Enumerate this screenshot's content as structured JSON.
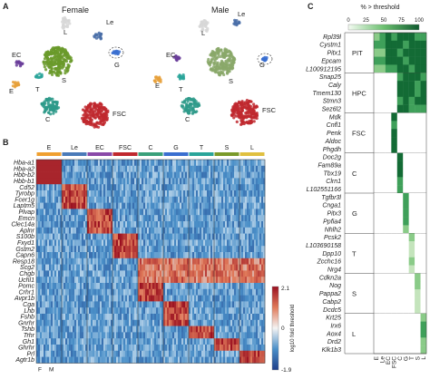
{
  "panels": {
    "a": "A",
    "b": "B",
    "c": "C"
  },
  "panel_a": {
    "female_title": "Female",
    "male_title": "Male",
    "female_clusters": [
      {
        "label": "L",
        "color": "#d7d7d7"
      },
      {
        "label": "Le",
        "color": "#4a6fa8"
      },
      {
        "label": "EC",
        "color": "#6a3d9a"
      },
      {
        "label": "S",
        "color": "#6a9a2a"
      },
      {
        "label": "T",
        "color": "#2aa59a"
      },
      {
        "label": "E",
        "color": "#e6a03a"
      },
      {
        "label": "G",
        "color": "#3a6fd0"
      },
      {
        "label": "C",
        "color": "#2e9a8a"
      },
      {
        "label": "FSC",
        "color": "#c0282e"
      }
    ],
    "male_clusters": [
      {
        "label": "L",
        "color": "#d7d7d7"
      },
      {
        "label": "Le",
        "color": "#4a6fa8"
      },
      {
        "label": "EC",
        "color": "#6a3d9a"
      },
      {
        "label": "S",
        "color": "#8aa86a"
      },
      {
        "label": "T",
        "color": "#2aa59a"
      },
      {
        "label": "E",
        "color": "#e6a03a"
      },
      {
        "label": "G",
        "color": "#3a6fd0"
      },
      {
        "label": "C",
        "color": "#2e9a8a"
      },
      {
        "label": "FSC",
        "color": "#c0282e"
      }
    ]
  },
  "chart_data": [
    {
      "type": "heatmap",
      "title": "",
      "column_groups": [
        {
          "label": "E",
          "color": "#f0a030"
        },
        {
          "label": "Le",
          "color": "#4a7ab8"
        },
        {
          "label": "EC",
          "color": "#8a4aa8"
        },
        {
          "label": "FSC",
          "color": "#c0282e"
        },
        {
          "label": "C",
          "color": "#3aa07a"
        },
        {
          "label": "G",
          "color": "#3a6fd0"
        },
        {
          "label": "T",
          "color": "#2aa59a"
        },
        {
          "label": "S",
          "color": "#7a9a2a"
        },
        {
          "label": "L",
          "color": "#e0c040"
        }
      ],
      "bottom_labels": [
        "F",
        "M"
      ],
      "rows": [
        "Hba-a1",
        "Hba-a2",
        "Hbb-b2",
        "Hbb-b1",
        "Cd52",
        "Tyrobp",
        "Fcer1g",
        "Laptm5",
        "Plvap",
        "Emcn",
        "Clec14a",
        "Aplnr",
        "S100b",
        "Fxyd1",
        "Gstm2",
        "Capn6",
        "Resp18",
        "Scg2",
        "Chgb",
        "Uchl1",
        "Pomc",
        "Crhr1",
        "Avpr1b",
        "Cga",
        "Lhb",
        "Fshb",
        "Gnrhr",
        "Tshb",
        "Trhr",
        "Gh1",
        "Ghrhr",
        "Prl",
        "Agtr1b"
      ],
      "row_group": [
        0,
        0,
        0,
        0,
        1,
        1,
        1,
        1,
        2,
        2,
        2,
        2,
        3,
        3,
        3,
        3,
        -1,
        -1,
        -1,
        -1,
        4,
        4,
        4,
        5,
        5,
        5,
        5,
        6,
        6,
        7,
        7,
        8,
        8
      ],
      "colorbar": {
        "min": -1.9,
        "max": 2.1,
        "ticks": [
          "2.1",
          "0",
          "-1.9"
        ],
        "label": "log10 fold threshold"
      }
    },
    {
      "type": "heatmap",
      "title": "% > threshold",
      "scale_ticks": [
        0,
        25,
        50,
        75,
        100
      ],
      "columns": [
        "E",
        "Le",
        "EC",
        "FSC",
        "C",
        "G",
        "T",
        "S",
        "L"
      ],
      "groups": [
        {
          "label": "PIT",
          "genes": [
            "Rpl39l",
            "Cystm1",
            "Pitx1",
            "Epcam",
            "L100912195"
          ],
          "pattern": [
            4,
            4,
            5,
            5,
            5,
            5,
            5,
            5,
            5
          ]
        },
        {
          "label": "HPC",
          "genes": [
            "Snap25",
            "Caly",
            "Tmem130",
            "Stmn3",
            "Sez6l2"
          ],
          "pattern": [
            0,
            0,
            0,
            0,
            5,
            5,
            5,
            5,
            5
          ]
        },
        {
          "label": "FSC",
          "genes": [
            "Mdk",
            "Cnfl1",
            "Penk",
            "Aldoc",
            "Phgdh"
          ],
          "pattern": [
            0,
            0,
            0,
            5,
            0,
            0,
            0,
            0,
            0
          ]
        },
        {
          "label": "C",
          "genes": [
            "Doc2g",
            "Fam89a",
            "Tbx19",
            "Clrn1",
            "L102551166"
          ],
          "pattern": [
            0,
            0,
            0,
            0,
            5,
            0,
            0,
            0,
            0
          ]
        },
        {
          "label": "G",
          "genes": [
            "Tgfbr3l",
            "Cnga1",
            "Pitx3",
            "Ppfia4",
            "Nhlh2"
          ],
          "pattern": [
            0,
            0,
            0,
            0,
            0,
            4,
            0,
            0,
            0
          ]
        },
        {
          "label": "T",
          "genes": [
            "Pcsk2",
            "L103690158",
            "Dpp10",
            "Zcchc16",
            "Nrg4"
          ],
          "pattern": [
            0,
            0,
            0,
            0,
            0,
            0,
            3,
            0,
            0
          ]
        },
        {
          "label": "S",
          "genes": [
            "Cdkn2a",
            "Nog",
            "Pappa2",
            "Cabp2",
            "Dcdc5"
          ],
          "pattern": [
            0,
            0,
            0,
            0,
            0,
            0,
            0,
            3,
            0
          ]
        },
        {
          "label": "L",
          "genes": [
            "Krt25",
            "Irx6",
            "Aox4",
            "Drd2",
            "Klk1b3"
          ],
          "pattern": [
            0,
            0,
            0,
            0,
            0,
            0,
            0,
            0,
            4
          ]
        }
      ]
    }
  ]
}
